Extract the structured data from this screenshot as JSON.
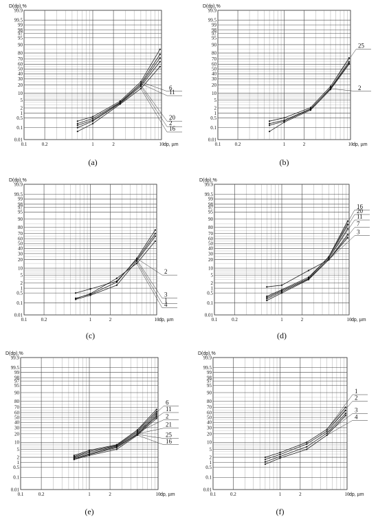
{
  "figure": {
    "axis": {
      "ylabel": "D(dp),%",
      "xlabel": "dp, µm",
      "yticks": [
        {
          "v": 0.01,
          "label": "0.01"
        },
        {
          "v": 0.1,
          "label": "0.1"
        },
        {
          "v": 0.5,
          "label": "0.5"
        },
        {
          "v": 1,
          "label": "1"
        },
        {
          "v": 2,
          "label": "2"
        },
        {
          "v": 5,
          "label": "5"
        },
        {
          "v": 10,
          "label": "10"
        },
        {
          "v": 20,
          "label": "20"
        },
        {
          "v": 30,
          "label": "30"
        },
        {
          "v": 40,
          "label": "40"
        },
        {
          "v": 50,
          "label": "50"
        },
        {
          "v": 60,
          "label": "60"
        },
        {
          "v": 70,
          "label": "70"
        },
        {
          "v": 80,
          "label": "80"
        },
        {
          "v": 90,
          "label": "90"
        },
        {
          "v": 95,
          "label": "95"
        },
        {
          "v": 97,
          "label": "97"
        },
        {
          "v": 98,
          "label": "98"
        },
        {
          "v": 99,
          "label": "99"
        },
        {
          "v": 99.5,
          "label": "99.5"
        },
        {
          "v": 99.9,
          "label": "99.9"
        }
      ],
      "xticks": [
        {
          "v": 0.1,
          "label": "0.1"
        },
        {
          "v": 0.2,
          "label": "0.2"
        },
        {
          "v": 1,
          "label": "1"
        },
        {
          "v": 2,
          "label": "2"
        },
        {
          "v": 10,
          "label": "10"
        }
      ],
      "minor_x": [
        0.3,
        0.4,
        0.5,
        0.6,
        0.7,
        0.8,
        0.9,
        3,
        4,
        5,
        6,
        7,
        8,
        9
      ],
      "minor_y": [
        3,
        4,
        6,
        7,
        8,
        9,
        15,
        25,
        35,
        45,
        55,
        65,
        75,
        85
      ]
    }
  },
  "chart_data": [
    {
      "panel": "(a)",
      "type": "line",
      "xscale": "log",
      "yscale": "probability",
      "xlabel": "dp, µm",
      "ylabel": "D(dp),%",
      "xlim": [
        0.1,
        10
      ],
      "ylim": [
        0.01,
        99.9
      ],
      "x": [
        0.6,
        1,
        2.5,
        5,
        9.5
      ],
      "series": [
        {
          "name": "6",
          "values": [
            0.3,
            0.6,
            4.5,
            25,
            85
          ]
        },
        {
          "name": "11",
          "values": [
            0.2,
            0.45,
            4,
            22,
            78
          ]
        },
        {
          "name": "20",
          "values": [
            0.15,
            0.35,
            3.8,
            20,
            72
          ]
        },
        {
          "name": "2",
          "values": [
            0.1,
            0.3,
            3.5,
            18,
            65
          ]
        },
        {
          "name": "16",
          "values": [
            0.05,
            0.2,
            3.2,
            15,
            55
          ]
        }
      ],
      "labels": [
        {
          "name": "6",
          "y": 12
        },
        {
          "name": "11",
          "y": 8
        },
        {
          "name": "20",
          "y": 0.3
        },
        {
          "name": "2",
          "y": 0.12
        },
        {
          "name": "16",
          "y": 0.045
        }
      ]
    },
    {
      "panel": "(b)",
      "type": "line",
      "xscale": "log",
      "yscale": "probability",
      "xlabel": "dp, µm",
      "ylabel": "D(dp),%",
      "xlim": [
        0.1,
        10
      ],
      "ylim": [
        0.01,
        99.9
      ],
      "x": [
        0.6,
        1,
        2.5,
        5,
        9.5
      ],
      "series": [
        {
          "name": "25",
          "values": [
            0.3,
            0.5,
            2.1,
            18,
            72
          ]
        },
        {
          "name": "2",
          "values": [
            0.2,
            0.35,
            1.8,
            15,
            62
          ]
        },
        {
          "name": "",
          "values": [
            0.15,
            0.3,
            1.7,
            16,
            65
          ]
        },
        {
          "name": "",
          "values": [
            0.05,
            0.25,
            1.5,
            14,
            60
          ]
        }
      ],
      "labels": [
        {
          "name": "25",
          "y": 85
        },
        {
          "name": "2",
          "y": 12
        }
      ]
    },
    {
      "panel": "(c)",
      "type": "line",
      "xscale": "log",
      "yscale": "probability",
      "xlabel": "dp, µm",
      "ylabel": "D(dp),%",
      "xlim": [
        0.1,
        10
      ],
      "ylim": [
        0.01,
        99.9
      ],
      "x": [
        0.6,
        1,
        2.5,
        5,
        9.5
      ],
      "series": [
        {
          "name": "2",
          "values": [
            0.22,
            0.4,
            2.2,
            22,
            76
          ]
        },
        {
          "name": "3",
          "values": [
            0.5,
            0.9,
            2.5,
            20,
            70
          ]
        },
        {
          "name": "1",
          "values": [
            0.18,
            0.35,
            1.5,
            18,
            65
          ]
        },
        {
          "name": "4",
          "values": [
            0.2,
            0.45,
            3.5,
            15,
            55
          ]
        }
      ],
      "labels": [
        {
          "name": "2",
          "y": 5
        },
        {
          "name": "3",
          "y": 0.22
        },
        {
          "name": "1",
          "y": 0.09
        },
        {
          "name": "4",
          "y": 0.04
        }
      ]
    },
    {
      "panel": "(d)",
      "type": "line",
      "xscale": "log",
      "yscale": "probability",
      "xlabel": "dp, µm",
      "ylabel": "D(dp),%",
      "xlim": [
        0.1,
        10
      ],
      "ylim": [
        0.01,
        99.9
      ],
      "x": [
        0.6,
        1,
        2.5,
        5,
        9.5
      ],
      "series": [
        {
          "name": "16",
          "values": [
            0.25,
            0.7,
            3.5,
            25,
            88
          ]
        },
        {
          "name": "20",
          "values": [
            0.3,
            0.8,
            4,
            24,
            84
          ]
        },
        {
          "name": "11",
          "values": [
            0.2,
            0.6,
            3.2,
            22,
            78
          ]
        },
        {
          "name": "7",
          "values": [
            1.2,
            1.5,
            8,
            20,
            68
          ]
        },
        {
          "name": "3",
          "values": [
            0.15,
            0.5,
            3,
            20,
            62
          ]
        }
      ],
      "labels": [
        {
          "name": "16",
          "y": 96
        },
        {
          "name": "20",
          "y": 93.5
        },
        {
          "name": "11",
          "y": 89
        },
        {
          "name": "7",
          "y": 80
        },
        {
          "name": "3",
          "y": 66
        }
      ]
    },
    {
      "panel": "(e)",
      "type": "line",
      "xscale": "log",
      "yscale": "probability",
      "xlabel": "dp, µm",
      "ylabel": "D(dp),%",
      "xlim": [
        0.1,
        10
      ],
      "ylim": [
        0.01,
        99.9
      ],
      "x": [
        0.6,
        1,
        2.5,
        5,
        9.5
      ],
      "series": [
        {
          "name": "6",
          "values": [
            2.5,
            4.5,
            8,
            26,
            66
          ]
        },
        {
          "name": "11",
          "values": [
            2.2,
            4,
            7.5,
            24,
            62
          ]
        },
        {
          "name": "2",
          "values": [
            2,
            3.5,
            7,
            22,
            58
          ]
        },
        {
          "name": "21",
          "values": [
            1.8,
            3,
            6.5,
            20,
            55
          ]
        },
        {
          "name": "25",
          "values": [
            1.6,
            2.8,
            6,
            19,
            52
          ]
        },
        {
          "name": "16",
          "values": [
            1.5,
            2.5,
            5,
            18,
            48
          ]
        }
      ],
      "labels": [
        {
          "name": "6",
          "y": 72
        },
        {
          "name": "11",
          "y": 60
        },
        {
          "name": "2",
          "y": 45
        },
        {
          "name": "21",
          "y": 29
        },
        {
          "name": "25",
          "y": 14
        },
        {
          "name": "16",
          "y": 8
        }
      ]
    },
    {
      "panel": "(f)",
      "type": "line",
      "xscale": "log",
      "yscale": "probability",
      "xlabel": "dp, µm",
      "ylabel": "D(dp),%",
      "xlim": [
        0.1,
        10
      ],
      "ylim": [
        0.01,
        99.9
      ],
      "x": [
        0.6,
        1,
        2.5,
        5,
        9.5
      ],
      "series": [
        {
          "name": "1",
          "values": [
            2,
            3.5,
            10,
            27,
            70
          ]
        },
        {
          "name": "2",
          "values": [
            1.5,
            2.8,
            8.5,
            24,
            64
          ]
        },
        {
          "name": "3",
          "values": [
            1.1,
            2.2,
            6.5,
            21,
            58
          ]
        },
        {
          "name": "4",
          "values": [
            0.8,
            1.8,
            5,
            18,
            54
          ]
        }
      ],
      "labels": [
        {
          "name": "1",
          "y": 88
        },
        {
          "name": "2",
          "y": 80
        },
        {
          "name": "3",
          "y": 58
        },
        {
          "name": "4",
          "y": 44
        }
      ]
    }
  ]
}
